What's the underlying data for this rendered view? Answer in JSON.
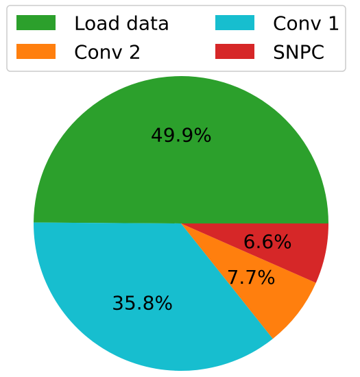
{
  "chart_data": {
    "type": "pie",
    "slices": [
      {
        "label": "Load data",
        "value": 49.9,
        "pct_label": "49.9%",
        "color": "#2ca02c"
      },
      {
        "label": "Conv 1",
        "value": 35.8,
        "pct_label": "35.8%",
        "color": "#17becf"
      },
      {
        "label": "Conv 2",
        "value": 7.7,
        "pct_label": "7.7%",
        "color": "#ff7f0e"
      },
      {
        "label": "SNPC",
        "value": 6.6,
        "pct_label": "6.6%",
        "color": "#d62728"
      }
    ],
    "start_angle_deg": 0,
    "direction": "counterclockwise",
    "legend": {
      "placement": "top",
      "columns": 2,
      "order": [
        "Load data",
        "Conv 2",
        "Conv 1",
        "SNPC"
      ]
    }
  }
}
